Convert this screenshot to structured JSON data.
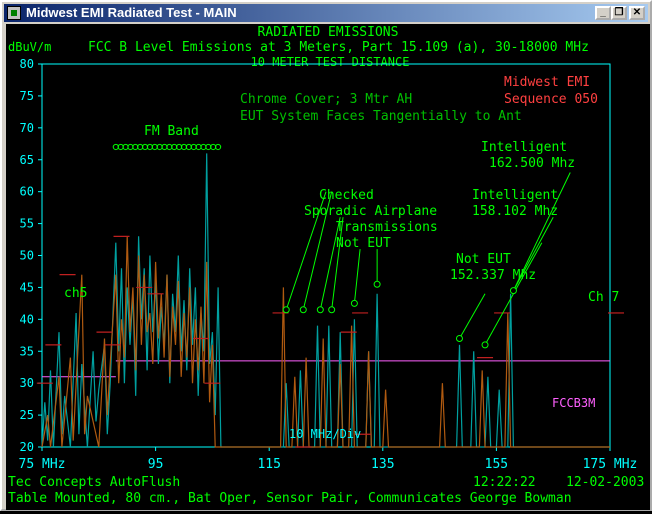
{
  "window": {
    "title": "Midwest EMI Radiated Test - MAIN",
    "buttons": [
      "_",
      "❐",
      "✕"
    ]
  },
  "header": {
    "line1": "RADIATED EMISSIONS",
    "line2": "FCC B Level Emissions at 3 Meters, Part 15.109 (a), 30-18000 MHz",
    "line3": "10 METER TEST DISTANCE",
    "yunit": "dBuV/m"
  },
  "notes": {
    "company": "Midwest EMI",
    "sequence": "Sequence 050",
    "setup1": "Chrome Cover; 3 Mtr AH",
    "setup2": "EUT System Faces Tangentially to Ant",
    "fm_band": "FM Band",
    "checked1": "Checked",
    "checked2": "Sporadic Airplane",
    "checked3": "Transmissions",
    "checked4": "Not EUT",
    "not_eut1": "Not EUT",
    "not_eut2": "152.337 Mhz",
    "intel_a1": "Intelligent",
    "intel_a2": "158.102 Mhz",
    "intel_b1": "Intelligent",
    "intel_b2": "162.500 Mhz",
    "ch5": "ch5",
    "ch7": "Ch 7",
    "limit": "FCCB3M",
    "div": "10 MHz/Div"
  },
  "footer": {
    "left1": "Tec Concepts AutoFlush",
    "time": "12:22:22",
    "date": "12-02-2003",
    "line2": "Table Mounted, 80 cm., Bat Oper, Sensor Pair, Communicates George Bowman"
  },
  "colors": {
    "axis": "#00ffff",
    "text": "#00ff00",
    "series_teal": "#00a0a0",
    "series_brown": "#b05a10",
    "limit": "#ff60ff",
    "company": "#ff4040",
    "markers": "#c02020"
  },
  "chart_data": {
    "type": "line",
    "xlim": [
      75,
      175
    ],
    "ylim": [
      20,
      80
    ],
    "xticks": [
      {
        "v": 75,
        "label": "75 MHz"
      },
      {
        "v": 95,
        "label": "95"
      },
      {
        "v": 115,
        "label": "115"
      },
      {
        "v": 135,
        "label": "135"
      },
      {
        "v": 155,
        "label": "155"
      },
      {
        "v": 175,
        "label": "175 MHz"
      }
    ],
    "yticks": [
      20,
      25,
      30,
      35,
      40,
      45,
      50,
      55,
      60,
      65,
      70,
      75,
      80
    ],
    "limit_line": {
      "name": "FCCB3M",
      "y": 33.5,
      "x_start": 88
    },
    "series": [
      {
        "name": "vertical",
        "color": "teal",
        "points": [
          [
            75,
            20
          ],
          [
            75.5,
            27
          ],
          [
            76,
            21
          ],
          [
            76.5,
            32
          ],
          [
            77,
            20
          ],
          [
            78,
            38
          ],
          [
            78.5,
            22
          ],
          [
            79,
            28
          ],
          [
            80,
            20
          ],
          [
            81,
            41
          ],
          [
            81.5,
            22
          ],
          [
            82,
            33
          ],
          [
            83,
            20
          ],
          [
            84,
            35
          ],
          [
            84.5,
            24
          ],
          [
            85,
            29
          ],
          [
            86,
            36
          ],
          [
            86.5,
            22
          ],
          [
            87,
            30
          ],
          [
            88,
            52
          ],
          [
            88.5,
            35
          ],
          [
            89,
            48
          ],
          [
            89.5,
            30
          ],
          [
            90,
            45
          ],
          [
            90.5,
            36
          ],
          [
            91,
            44
          ],
          [
            91.5,
            28
          ],
          [
            92,
            53
          ],
          [
            92.5,
            40
          ],
          [
            93,
            48
          ],
          [
            93.5,
            32
          ],
          [
            94,
            50
          ],
          [
            94.5,
            38
          ],
          [
            95,
            46
          ],
          [
            95.5,
            33
          ],
          [
            96,
            42
          ],
          [
            96.5,
            36
          ],
          [
            97,
            47
          ],
          [
            97.5,
            30
          ],
          [
            98,
            44
          ],
          [
            98.5,
            38
          ],
          [
            99,
            50
          ],
          [
            99.5,
            35
          ],
          [
            100,
            43
          ],
          [
            100.5,
            32
          ],
          [
            101,
            48
          ],
          [
            101.5,
            36
          ],
          [
            102,
            45
          ],
          [
            102.5,
            28
          ],
          [
            103,
            41
          ],
          [
            103.5,
            35
          ],
          [
            104,
            66
          ],
          [
            104.5,
            33
          ],
          [
            105,
            38
          ],
          [
            105.5,
            25
          ],
          [
            106,
            45
          ],
          [
            106.5,
            20
          ],
          [
            107,
            20
          ],
          [
            117.5,
            20
          ],
          [
            118,
            30
          ],
          [
            118.5,
            20
          ],
          [
            120,
            20
          ],
          [
            120.5,
            32
          ],
          [
            121,
            20
          ],
          [
            123,
            20
          ],
          [
            123.5,
            39
          ],
          [
            124,
            20
          ],
          [
            125,
            20
          ],
          [
            125.5,
            39
          ],
          [
            126,
            20
          ],
          [
            127,
            20
          ],
          [
            127.5,
            38
          ],
          [
            128,
            20
          ],
          [
            129.5,
            20
          ],
          [
            130,
            40
          ],
          [
            130.5,
            20
          ],
          [
            132,
            20
          ],
          [
            132.5,
            35
          ],
          [
            133,
            20
          ],
          [
            133.5,
            20
          ],
          [
            134,
            44
          ],
          [
            134.5,
            20
          ],
          [
            148,
            20
          ],
          [
            148.5,
            36
          ],
          [
            149,
            20
          ],
          [
            150.5,
            20
          ],
          [
            151,
            35
          ],
          [
            151.5,
            20
          ],
          [
            153,
            20
          ],
          [
            153.5,
            31
          ],
          [
            154,
            20
          ],
          [
            155,
            20
          ],
          [
            155.5,
            29
          ],
          [
            156,
            20
          ],
          [
            157,
            20
          ],
          [
            157.5,
            44
          ],
          [
            158,
            20
          ],
          [
            175,
            20
          ]
        ]
      },
      {
        "name": "horizontal",
        "color": "brown",
        "points": [
          [
            75,
            20
          ],
          [
            76,
            25
          ],
          [
            76.5,
            20
          ],
          [
            78,
            31
          ],
          [
            78.5,
            20
          ],
          [
            80,
            34
          ],
          [
            80.5,
            21
          ],
          [
            82,
            47
          ],
          [
            82.5,
            22
          ],
          [
            83,
            28
          ],
          [
            85,
            20
          ],
          [
            86,
            37
          ],
          [
            86.5,
            25
          ],
          [
            87,
            33
          ],
          [
            88,
            47
          ],
          [
            88.5,
            30
          ],
          [
            89,
            40
          ],
          [
            89.5,
            34
          ],
          [
            90,
            53
          ],
          [
            90.5,
            38
          ],
          [
            91,
            45
          ],
          [
            91.5,
            32
          ],
          [
            92,
            50
          ],
          [
            92.5,
            36
          ],
          [
            93,
            47
          ],
          [
            93.5,
            38
          ],
          [
            94,
            41
          ],
          [
            94.5,
            33
          ],
          [
            95,
            49
          ],
          [
            95.5,
            37
          ],
          [
            96,
            44
          ],
          [
            96.5,
            34
          ],
          [
            97,
            47
          ],
          [
            97.5,
            31
          ],
          [
            98,
            42
          ],
          [
            98.5,
            36
          ],
          [
            99,
            46
          ],
          [
            99.5,
            31
          ],
          [
            100,
            41
          ],
          [
            100.5,
            34
          ],
          [
            101,
            45
          ],
          [
            101.5,
            30
          ],
          [
            102,
            40
          ],
          [
            102.5,
            32
          ],
          [
            103,
            42
          ],
          [
            103.5,
            30
          ],
          [
            104,
            49
          ],
          [
            104.5,
            27
          ],
          [
            105,
            36
          ],
          [
            105.5,
            20
          ],
          [
            107,
            20
          ],
          [
            117,
            20
          ],
          [
            117.5,
            45
          ],
          [
            118,
            20
          ],
          [
            119,
            20
          ],
          [
            119.5,
            31
          ],
          [
            120,
            20
          ],
          [
            121,
            20
          ],
          [
            121.5,
            34
          ],
          [
            122,
            20
          ],
          [
            124,
            20
          ],
          [
            124.5,
            37
          ],
          [
            125,
            20
          ],
          [
            127,
            20
          ],
          [
            127.5,
            33
          ],
          [
            128,
            20
          ],
          [
            129,
            20
          ],
          [
            129.5,
            39
          ],
          [
            130,
            20
          ],
          [
            132,
            20
          ],
          [
            132.5,
            35
          ],
          [
            133,
            20
          ],
          [
            135,
            20
          ],
          [
            135.5,
            29
          ],
          [
            136,
            20
          ],
          [
            145,
            20
          ],
          [
            145.5,
            30
          ],
          [
            146,
            20
          ],
          [
            152,
            20
          ],
          [
            152.5,
            32
          ],
          [
            153,
            20
          ],
          [
            156.5,
            20
          ],
          [
            157,
            41
          ],
          [
            157.5,
            20
          ],
          [
            175,
            20
          ]
        ]
      }
    ],
    "peak_markers": [
      [
        75.5,
        30
      ],
      [
        77,
        36
      ],
      [
        79.5,
        47
      ],
      [
        86,
        38
      ],
      [
        87.5,
        36
      ],
      [
        89,
        53
      ],
      [
        93,
        45
      ],
      [
        95,
        44
      ],
      [
        103,
        37
      ],
      [
        105,
        30
      ],
      [
        117,
        41
      ],
      [
        121,
        20
      ],
      [
        129,
        38
      ],
      [
        131,
        41
      ],
      [
        131.5,
        22
      ],
      [
        153,
        34
      ],
      [
        156,
        41
      ],
      [
        177,
        41
      ]
    ],
    "fm_dots": {
      "x_start": 88,
      "x_end": 106,
      "count": 22,
      "y": 67
    },
    "marker_circles": [
      [
        118,
        41.5
      ],
      [
        121,
        41.5
      ],
      [
        124,
        41.5
      ],
      [
        126,
        41.5
      ],
      [
        130,
        42.5
      ],
      [
        134,
        45.5
      ],
      [
        148.5,
        37
      ],
      [
        153,
        36
      ],
      [
        158,
        44.5
      ]
    ],
    "callouts": [
      {
        "from": [
          125,
          60
        ],
        "to": [
          118,
          41.5
        ]
      },
      {
        "from": [
          126,
          60
        ],
        "to": [
          121,
          41.5
        ]
      },
      {
        "from": [
          127.5,
          56
        ],
        "to": [
          124,
          41.5
        ]
      },
      {
        "from": [
          128,
          56
        ],
        "to": [
          126,
          41.5
        ]
      },
      {
        "from": [
          131,
          51
        ],
        "to": [
          130,
          42.5
        ]
      },
      {
        "from": [
          134,
          51
        ],
        "to": [
          134,
          45.5
        ]
      },
      {
        "from": [
          153,
          44
        ],
        "to": [
          148.5,
          37
        ]
      },
      {
        "from": [
          163,
          52
        ],
        "to": [
          153,
          36
        ]
      },
      {
        "from": [
          165,
          56
        ],
        "to": [
          158,
          44.5
        ]
      },
      {
        "from": [
          168,
          63
        ],
        "to": [
          158,
          44.5
        ]
      }
    ]
  }
}
